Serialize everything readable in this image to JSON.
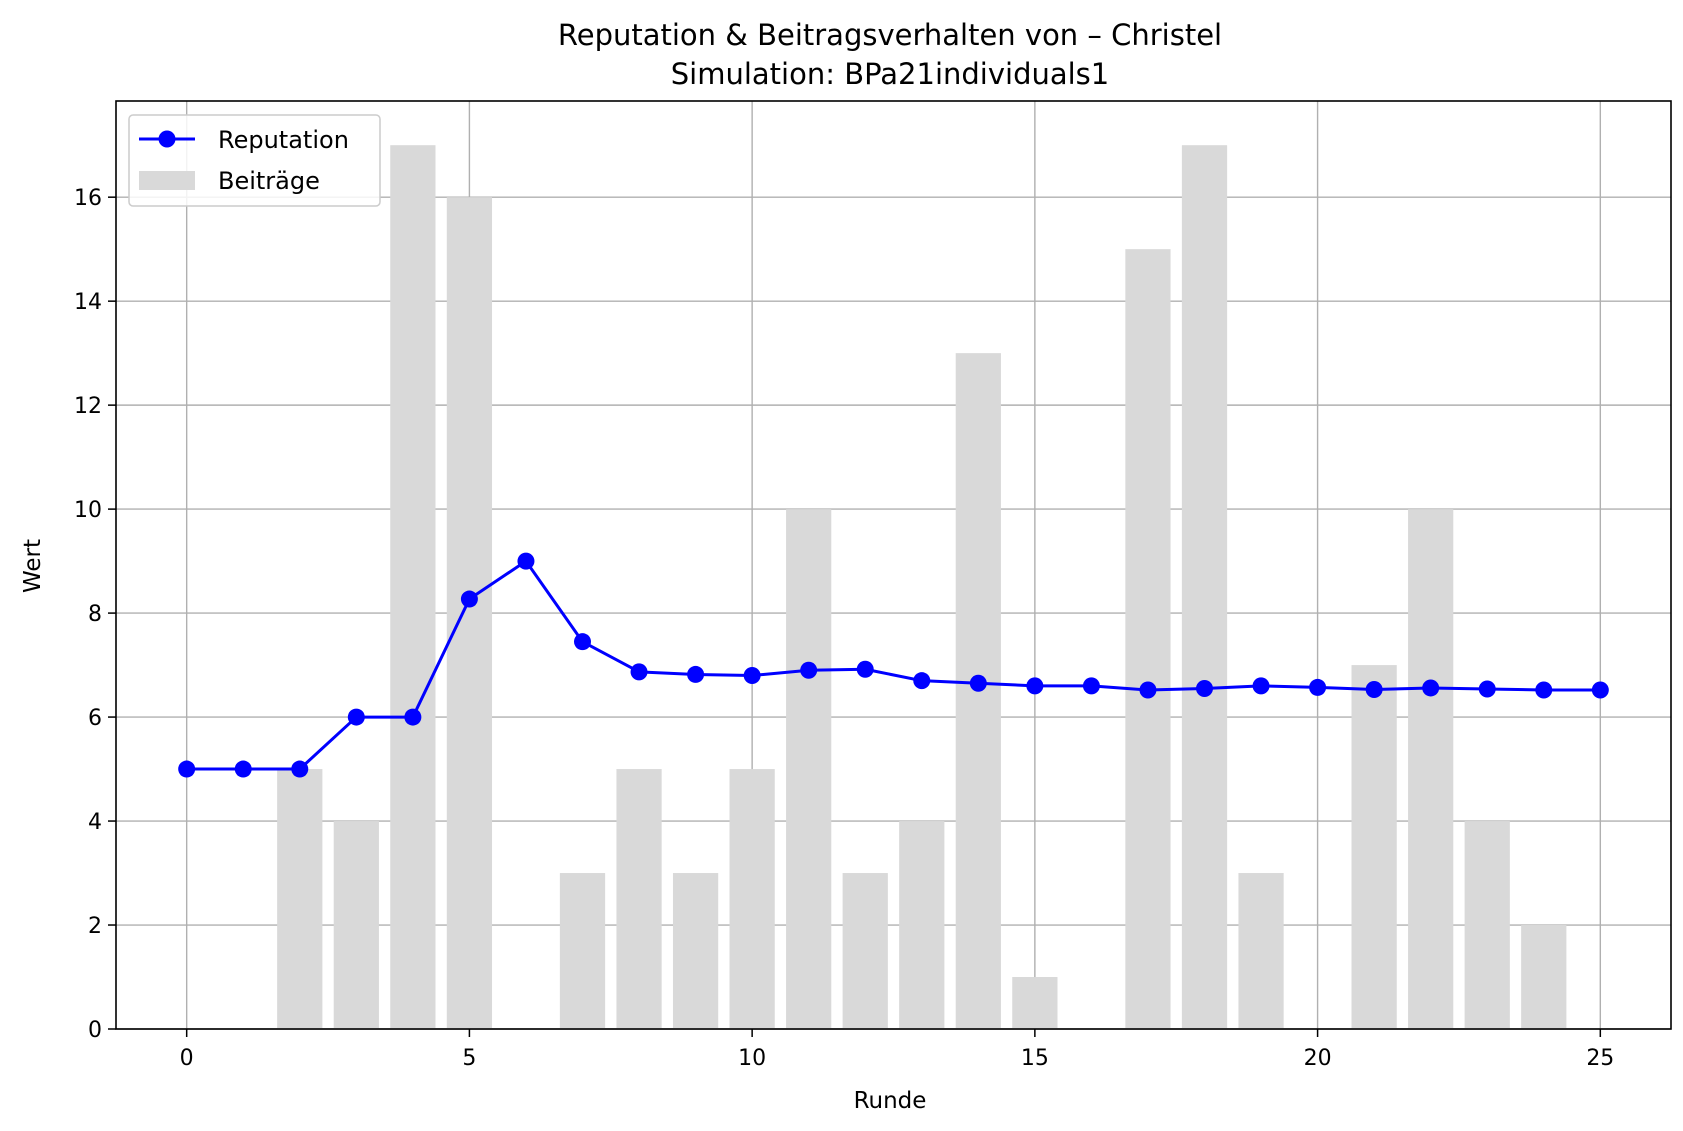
{
  "chart_data": {
    "type": "bar",
    "title": "Reputation & Beitragsverhalten von – Christel",
    "subtitle": "Simulation: BPa21individuals1",
    "xlabel": "Runde",
    "ylabel": "Wert",
    "xlim": [
      -1.25,
      26.25
    ],
    "ylim": [
      0,
      17.85
    ],
    "xticks": [
      0,
      5,
      10,
      15,
      20,
      25
    ],
    "yticks": [
      0,
      2,
      4,
      6,
      8,
      10,
      12,
      14,
      16
    ],
    "grid": true,
    "legend_position": "top-left",
    "x": [
      0,
      1,
      2,
      3,
      4,
      5,
      6,
      7,
      8,
      9,
      10,
      11,
      12,
      13,
      14,
      15,
      16,
      17,
      18,
      19,
      20,
      21,
      22,
      23,
      24,
      25
    ],
    "series": [
      {
        "name": "Reputation",
        "kind": "line",
        "color": "#0000ff",
        "marker": "circle",
        "values": [
          5.0,
          5.0,
          5.0,
          6.0,
          6.0,
          8.27,
          9.0,
          7.45,
          6.87,
          6.82,
          6.8,
          6.9,
          6.92,
          6.7,
          6.65,
          6.6,
          6.6,
          6.52,
          6.55,
          6.6,
          6.57,
          6.53,
          6.56,
          6.54,
          6.52,
          6.52
        ]
      },
      {
        "name": "Beiträge",
        "kind": "bar",
        "color": "#d9d9d9",
        "values": [
          0,
          0,
          5,
          4,
          17,
          16,
          0,
          3,
          5,
          3,
          5,
          10,
          3,
          4,
          13,
          1,
          0,
          15,
          17,
          3,
          0,
          7,
          10,
          4,
          2,
          0
        ]
      }
    ]
  }
}
